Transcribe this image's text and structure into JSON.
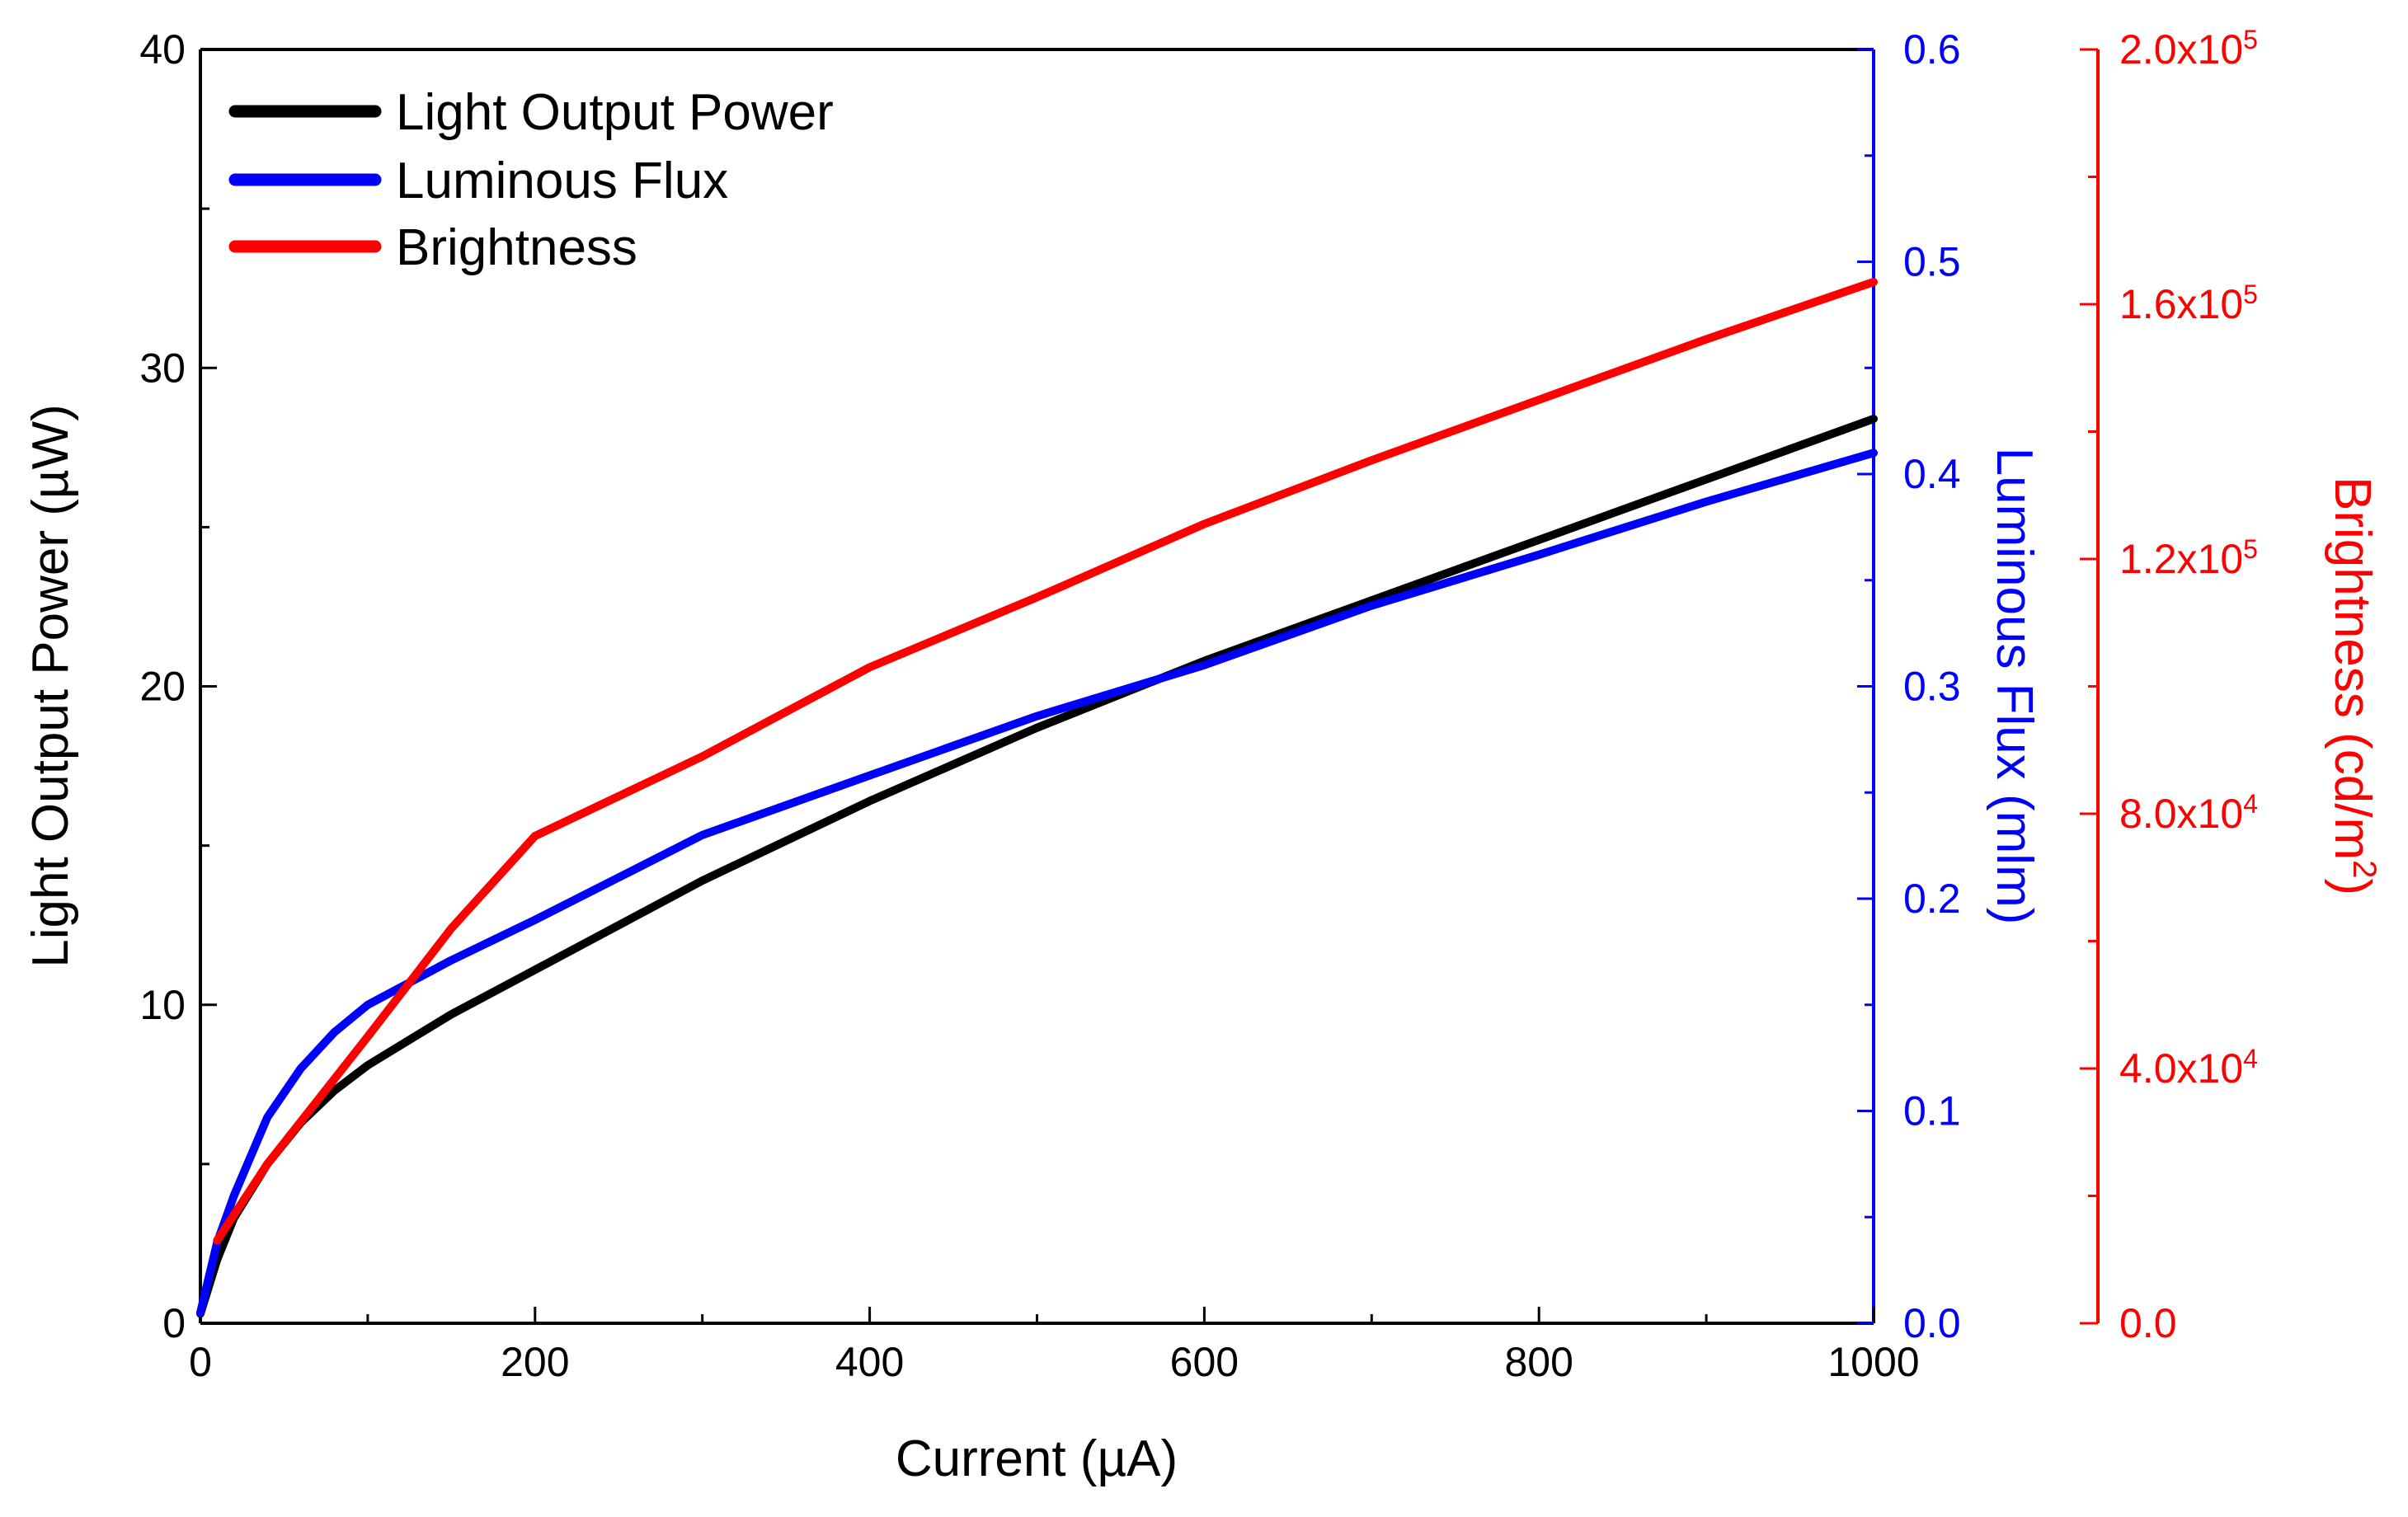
{
  "chart_data": {
    "type": "line",
    "title": "",
    "xlabel": "Current (µA)",
    "xlim": [
      0,
      1000
    ],
    "x_ticks": [
      "0",
      "200",
      "400",
      "600",
      "800",
      "1000"
    ],
    "axes": {
      "left": {
        "label": "Light Output Power (µW)",
        "range": [
          0,
          40
        ],
        "ticks": [
          "0",
          "10",
          "20",
          "30",
          "40"
        ],
        "color": "#000000"
      },
      "right1": {
        "label": "Luminous Flux (mlm)",
        "range": [
          0,
          0.6
        ],
        "ticks": [
          "0.0",
          "0.1",
          "0.2",
          "0.3",
          "0.4",
          "0.5",
          "0.6"
        ],
        "color": "#0000ff"
      },
      "right2": {
        "label_main": "Brightness (cd/m",
        "label_sup": "2",
        "label_end": ")",
        "range": [
          0,
          200000
        ],
        "ticks": [
          {
            "mant": "0.0",
            "exp": ""
          },
          {
            "mant": "4.0x10",
            "exp": "4"
          },
          {
            "mant": "8.0x10",
            "exp": "4"
          },
          {
            "mant": "1.2x10",
            "exp": "5"
          },
          {
            "mant": "1.6x10",
            "exp": "5"
          },
          {
            "mant": "2.0x10",
            "exp": "5"
          }
        ],
        "color": "#ff0000"
      }
    },
    "series": [
      {
        "name": "Light Output Power",
        "axis": "left",
        "color": "#000000",
        "x": [
          0,
          10,
          20,
          40,
          60,
          80,
          100,
          150,
          200,
          300,
          400,
          500,
          600,
          700,
          800,
          900,
          1000
        ],
        "y": [
          0.3,
          2.0,
          3.3,
          5.0,
          6.3,
          7.3,
          8.1,
          9.7,
          11.1,
          13.9,
          16.4,
          18.7,
          20.8,
          22.7,
          24.6,
          26.5,
          28.4
        ]
      },
      {
        "name": "Luminous Flux",
        "axis": "right1",
        "color": "#0000ff",
        "x": [
          0,
          10,
          20,
          40,
          60,
          80,
          100,
          150,
          200,
          300,
          400,
          500,
          600,
          700,
          800,
          900,
          1000
        ],
        "y": [
          0.005,
          0.038,
          0.06,
          0.097,
          0.12,
          0.137,
          0.15,
          0.171,
          0.19,
          0.23,
          0.258,
          0.286,
          0.31,
          0.338,
          0.362,
          0.387,
          0.41
        ]
      },
      {
        "name": "Brightness",
        "axis": "right2",
        "color": "#ff0000",
        "x": [
          10,
          40,
          100,
          150,
          200,
          300,
          400,
          500,
          600,
          700,
          800,
          900,
          1000
        ],
        "y": [
          13000,
          25000,
          45000,
          62000,
          76500,
          89000,
          103000,
          114000,
          125500,
          135500,
          145000,
          154500,
          163500
        ]
      }
    ],
    "legend_position": "top-left"
  }
}
